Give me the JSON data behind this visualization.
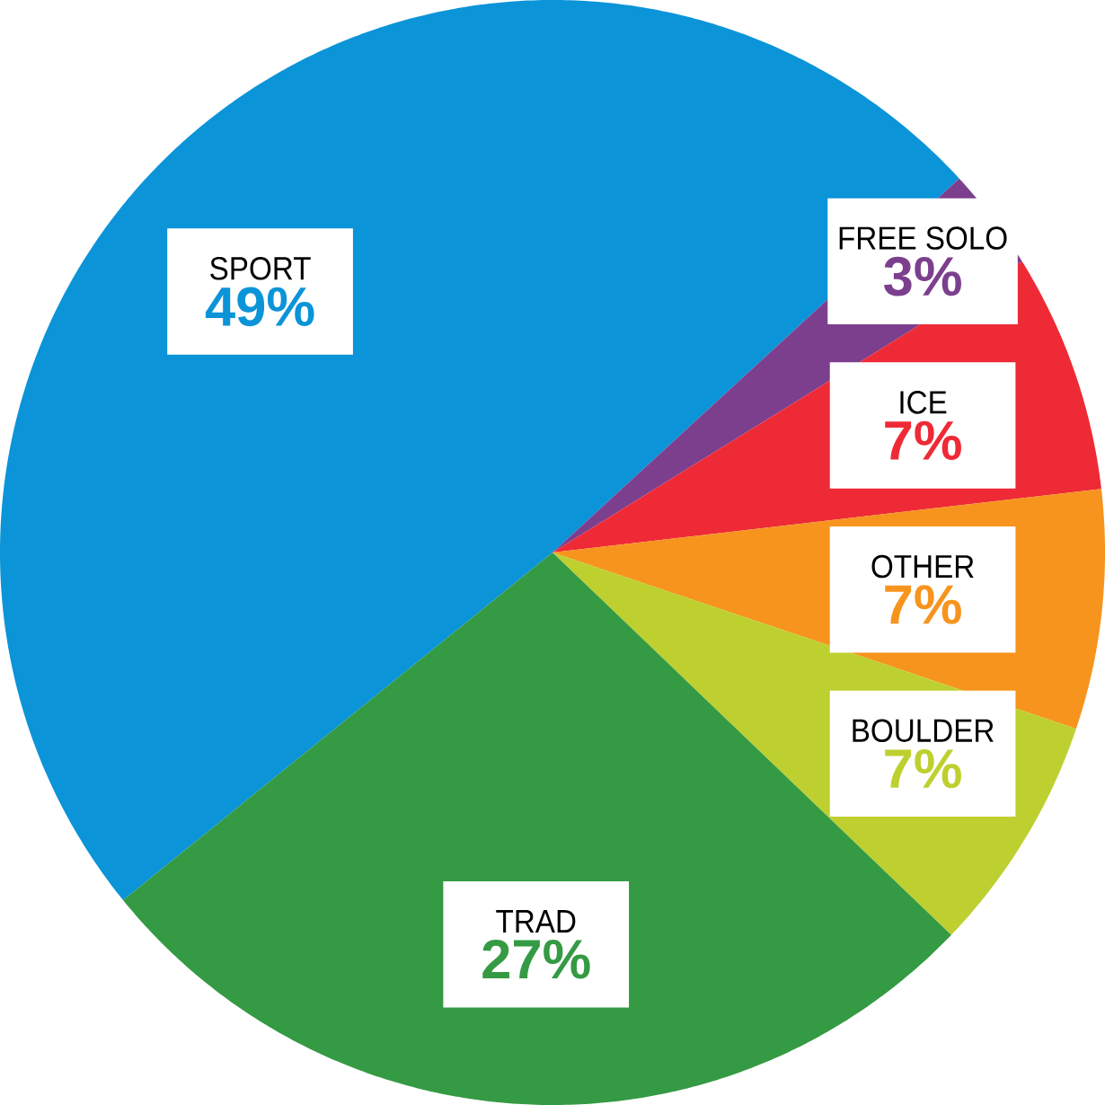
{
  "chart_data": {
    "type": "pie",
    "categories": [
      "SPORT",
      "FREE SOLO",
      "ICE",
      "OTHER",
      "BOULDER",
      "TRAD"
    ],
    "values": [
      49,
      3,
      7,
      7,
      7,
      27
    ],
    "colors": [
      "#0b94d8",
      "#7c3f8e",
      "#ee2a36",
      "#f7941e",
      "#bed030",
      "#349a43"
    ],
    "value_labels": [
      "49%",
      "3%",
      "7%",
      "7%",
      "7%",
      "27%"
    ]
  }
}
